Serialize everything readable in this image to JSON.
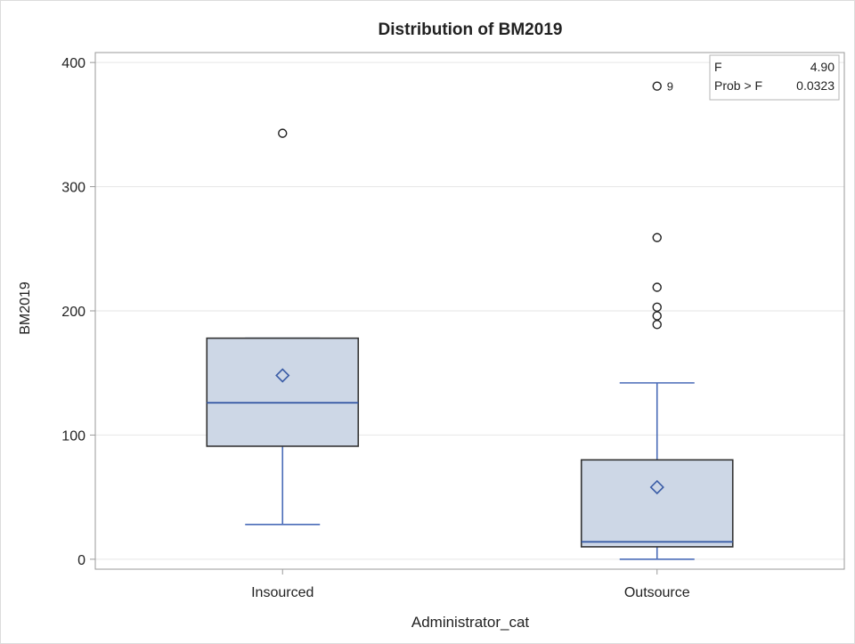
{
  "chart_data": {
    "type": "box",
    "title": "Distribution of BM2019",
    "xlabel": "Administrator_cat",
    "ylabel": "BM2019",
    "ylim": [
      -8,
      408
    ],
    "yticks": [
      0,
      100,
      200,
      300,
      400
    ],
    "ytick_labels": [
      "0",
      "100",
      "200",
      "300",
      "400"
    ],
    "grid": true,
    "categories": [
      "Insourced",
      "Outsource"
    ],
    "boxes": [
      {
        "category": "Insourced",
        "min": 28,
        "q1": 91,
        "median": 126,
        "q3": 178,
        "max": 178,
        "mean": 148,
        "outliers": [
          343
        ],
        "outlier_labels": [
          ""
        ]
      },
      {
        "category": "Outsource",
        "min": 0,
        "q1": 10,
        "median": 14,
        "q3": 80,
        "max": 142,
        "mean": 58,
        "outliers": [
          381,
          259,
          219,
          203,
          196,
          189
        ],
        "outlier_labels": [
          "9",
          "",
          "",
          "",
          "",
          ""
        ]
      }
    ],
    "stats_table": [
      {
        "label": "F",
        "value": "4.90"
      },
      {
        "label": "Prob > F",
        "value": "0.0323"
      }
    ],
    "legend_position": "top-right",
    "colors": {
      "box_fill": "#cdd7e6",
      "box_edge": "#333333",
      "median_line": "#3a5ca6",
      "whisker": "#4a6cb8",
      "mean_marker": "#3a5ca6",
      "outlier": "#222222",
      "grid": "#e6e6e6",
      "axis": "#9a9a9a"
    }
  }
}
